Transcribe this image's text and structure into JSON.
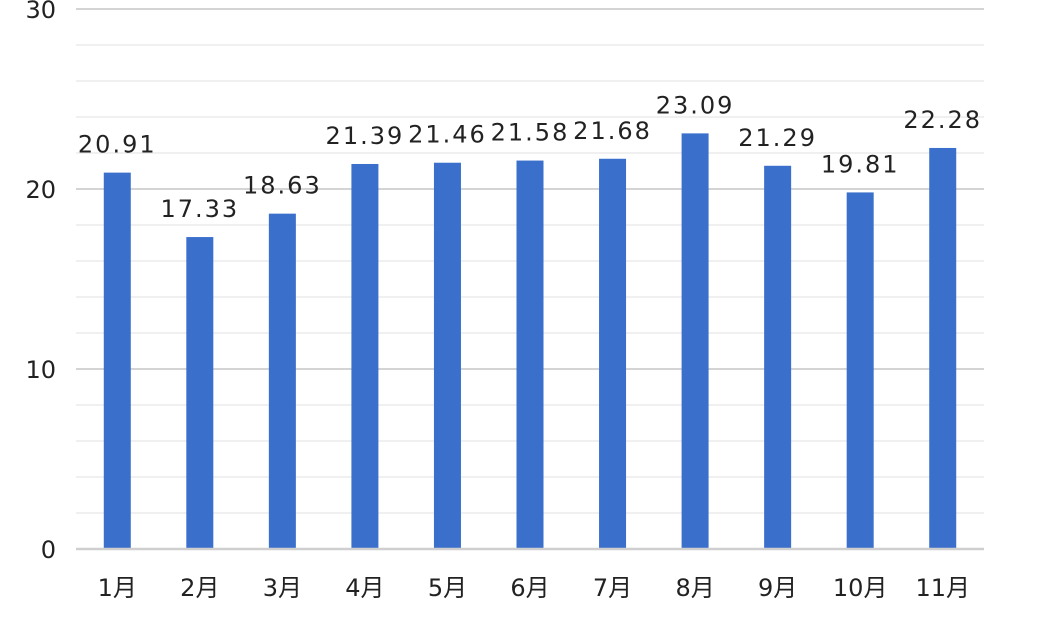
{
  "chart_data": {
    "type": "bar",
    "title": "",
    "xlabel": "",
    "ylabel": "",
    "categories": [
      "1月",
      "2月",
      "3月",
      "4月",
      "5月",
      "6月",
      "7月",
      "8月",
      "9月",
      "10月",
      "11月"
    ],
    "values": [
      20.91,
      17.33,
      18.63,
      21.39,
      21.46,
      21.58,
      21.68,
      23.09,
      21.29,
      19.81,
      22.28
    ],
    "value_labels": [
      "20.91",
      "17.33",
      "18.63",
      "21.39",
      "21.46",
      "21.58",
      "21.68",
      "23.09",
      "21.29",
      "19.81",
      "22.28"
    ],
    "ylim": [
      0,
      30
    ],
    "yticks": [
      0,
      10,
      20,
      30
    ],
    "ytick_labels": [
      "0",
      "10",
      "20",
      "30"
    ],
    "minor_grid_step": 2,
    "grid": true,
    "legend": "none",
    "bar_color": "#3a6fcb"
  }
}
